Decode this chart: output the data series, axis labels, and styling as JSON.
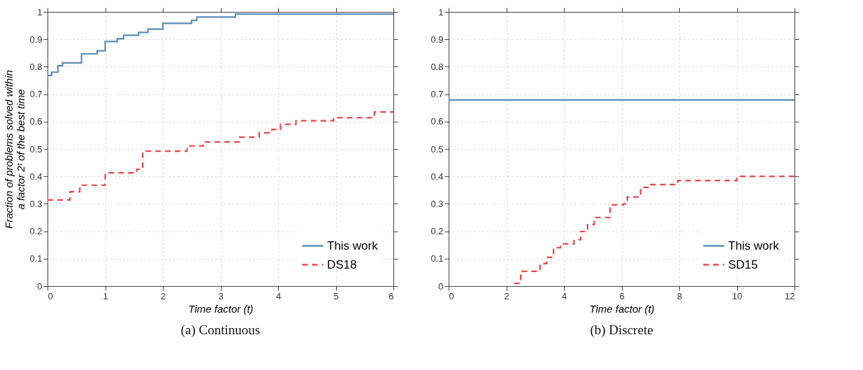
{
  "chart_data": [
    {
      "type": "step",
      "title": "(a) Continuous",
      "xlabel": "Time factor (t)",
      "ylabel": "Fraction of problems solved within a factor 2ᵗ of the best time",
      "xlim": [
        0,
        6
      ],
      "xticks": [
        0,
        1,
        2,
        3,
        4,
        5,
        6
      ],
      "ylim": [
        0,
        1
      ],
      "yticks": [
        0,
        0.1,
        0.2,
        0.3,
        0.4,
        0.5,
        0.6,
        0.7,
        0.8,
        0.9,
        1
      ],
      "grid": true,
      "legend": "bottom right",
      "series": [
        {
          "name": "This work",
          "color": "#5b8db8",
          "line_style": "solid",
          "x": [
            0,
            0.07,
            0.18,
            0.26,
            0.59,
            0.86,
            1.0,
            1.21,
            1.32,
            1.58,
            1.74,
            2.0,
            2.5,
            2.59,
            3.26,
            6
          ],
          "values": [
            0.768,
            0.78,
            0.803,
            0.814,
            0.847,
            0.858,
            0.892,
            0.902,
            0.915,
            0.925,
            0.937,
            0.958,
            0.969,
            0.981,
            0.992,
            0.992
          ]
        },
        {
          "name": "DS18",
          "color": "#e8474a",
          "line_style": "dashed",
          "x": [
            0,
            0.39,
            0.56,
            1.0,
            1.55,
            1.65,
            2.42,
            2.7,
            3.33,
            3.67,
            3.89,
            4.04,
            4.31,
            4.96,
            5.67,
            6
          ],
          "values": [
            0.314,
            0.344,
            0.368,
            0.413,
            0.426,
            0.492,
            0.511,
            0.526,
            0.543,
            0.559,
            0.571,
            0.59,
            0.603,
            0.614,
            0.635,
            0.635
          ]
        }
      ]
    },
    {
      "type": "step",
      "title": "(b) Discrete",
      "xlabel": "Time factor (t)",
      "xlim": [
        0,
        12
      ],
      "xticks": [
        0,
        2,
        4,
        6,
        8,
        10,
        12
      ],
      "ylim": [
        0,
        1
      ],
      "yticks": [
        0,
        0.1,
        0.2,
        0.3,
        0.4,
        0.5,
        0.6,
        0.7,
        0.8,
        0.9,
        1
      ],
      "grid": true,
      "legend": "bottom right",
      "series": [
        {
          "name": "This work",
          "color": "#5b8db8",
          "line_style": "solid",
          "x": [
            0,
            12
          ],
          "values": [
            0.679,
            0.679
          ]
        },
        {
          "name": "SD15",
          "color": "#e8474a",
          "line_style": "dashed",
          "x": [
            2.27,
            2.5,
            3.17,
            3.4,
            3.64,
            3.88,
            4.35,
            4.58,
            4.82,
            5.05,
            5.6,
            6.07,
            6.2,
            6.66,
            7.0,
            7.95,
            10.0,
            12
          ],
          "values": [
            0.01,
            0.054,
            0.082,
            0.105,
            0.14,
            0.154,
            0.169,
            0.199,
            0.224,
            0.25,
            0.296,
            0.3,
            0.325,
            0.36,
            0.37,
            0.385,
            0.4,
            0.4
          ]
        }
      ]
    }
  ]
}
